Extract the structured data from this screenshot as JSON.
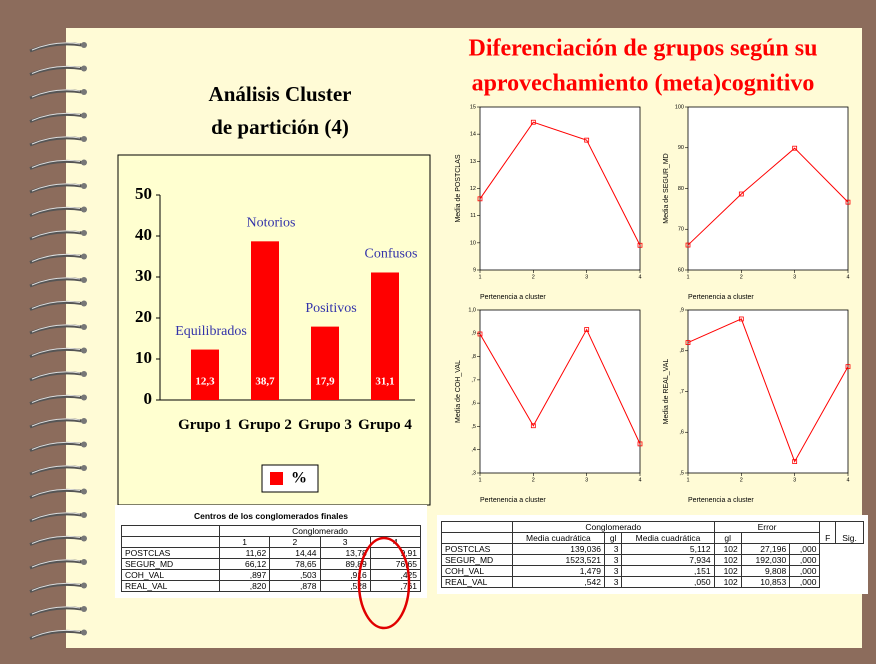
{
  "title": [
    "Diferenciación de grupos según su",
    "aprovechamiento (meta)cognitivo"
  ],
  "chart_data": [
    {
      "type": "bar",
      "title": [
        "Análisis Cluster",
        "de partición (4)"
      ],
      "categories": [
        "Grupo 1",
        "Grupo 2",
        "Grupo 3",
        "Grupo 4"
      ],
      "annotations": [
        "Equilibrados",
        "Notorios",
        "Positivos",
        "Confusos"
      ],
      "series": [
        {
          "name": "%",
          "color": "#ff0000",
          "values": [
            12.3,
            38.7,
            17.9,
            31.1
          ],
          "value_labels": [
            "12,3",
            "38,7",
            "17,9",
            "31,1"
          ]
        }
      ],
      "ylim": [
        0,
        50
      ],
      "yticks": [
        0,
        10,
        20,
        30,
        40,
        50
      ]
    },
    {
      "type": "line",
      "xlabel": "Pertenencia a cluster",
      "ylabel": "Media de POSTCLAS",
      "x": [
        1,
        2,
        3,
        4
      ],
      "xlim": [
        1,
        4
      ],
      "xticks": [
        1,
        2,
        3,
        4
      ],
      "series": [
        {
          "color": "#ff0000",
          "values": [
            11.62,
            14.44,
            13.78,
            9.91
          ]
        }
      ],
      "ylim": [
        9,
        15
      ],
      "yticks": [
        9,
        10,
        11,
        12,
        13,
        14,
        15
      ]
    },
    {
      "type": "line",
      "xlabel": "Pertenencia a cluster",
      "ylabel": "Media de SEGUR_MD",
      "x": [
        1,
        2,
        3,
        4
      ],
      "xlim": [
        1,
        4
      ],
      "xticks": [
        1,
        2,
        3,
        4
      ],
      "series": [
        {
          "color": "#ff0000",
          "values": [
            66.12,
            78.65,
            89.89,
            76.65
          ]
        }
      ],
      "ylim": [
        60,
        100
      ],
      "yticks": [
        60,
        70,
        80,
        90,
        100
      ]
    },
    {
      "type": "line",
      "xlabel": "Pertenencia a cluster",
      "ylabel": "Media de COH_VAL",
      "x": [
        1,
        2,
        3,
        4
      ],
      "xlim": [
        1,
        4
      ],
      "xticks": [
        1,
        2,
        3,
        4
      ],
      "series": [
        {
          "color": "#ff0000",
          "values": [
            0.897,
            0.503,
            0.916,
            0.425
          ]
        }
      ],
      "ylim": [
        0.3,
        1.0
      ],
      "yticks": [
        {
          "value": 0.3,
          "label": ",3"
        },
        {
          "value": 0.4,
          "label": ",4"
        },
        {
          "value": 0.5,
          "label": ",5"
        },
        {
          "value": 0.6,
          "label": ",6"
        },
        {
          "value": 0.7,
          "label": ",7"
        },
        {
          "value": 0.8,
          "label": ",8"
        },
        {
          "value": 0.9,
          "label": ",9"
        },
        {
          "value": 1.0,
          "label": "1,0"
        }
      ]
    },
    {
      "type": "line",
      "xlabel": "Pertenencia a cluster",
      "ylabel": "Media de REAL_VAL",
      "x": [
        1,
        2,
        3,
        4
      ],
      "xlim": [
        1,
        4
      ],
      "xticks": [
        1,
        2,
        3,
        4
      ],
      "series": [
        {
          "color": "#ff0000",
          "values": [
            0.82,
            0.878,
            0.528,
            0.761
          ]
        }
      ],
      "ylim": [
        0.5,
        0.9
      ],
      "yticks": [
        {
          "value": 0.5,
          "label": ",5"
        },
        {
          "value": 0.6,
          "label": ",6"
        },
        {
          "value": 0.7,
          "label": ",7"
        },
        {
          "value": 0.8,
          "label": ",8"
        },
        {
          "value": 0.9,
          "label": ",9"
        }
      ]
    }
  ],
  "tables": [
    {
      "title": "Centros de los conglomerados finales",
      "groups": [
        "Conglomerado"
      ],
      "columns": [
        "1",
        "2",
        "3",
        "4"
      ],
      "rows": [
        [
          "POSTCLAS",
          "11,62",
          "14,44",
          "13,78",
          "9,91"
        ],
        [
          "SEGUR_MD",
          "66,12",
          "78,65",
          "89,89",
          "76,65"
        ],
        [
          "COH_VAL",
          ",897",
          ",503",
          ",916",
          ",425"
        ],
        [
          "REAL_VAL",
          ",820",
          ",878",
          ",528",
          ",761"
        ]
      ]
    },
    {
      "groups": [
        "Conglomerado",
        "Error"
      ],
      "columns": [
        "Media cuadrática",
        "gl",
        "Media cuadrática",
        "gl",
        "F",
        "Sig."
      ],
      "rows": [
        [
          "POSTCLAS",
          "139,036",
          "3",
          "5,112",
          "102",
          "27,196",
          ",000"
        ],
        [
          "SEGUR_MD",
          "1523,521",
          "3",
          "7,934",
          "102",
          "192,030",
          ",000"
        ],
        [
          "COH_VAL",
          "1,479",
          "3",
          ",151",
          "102",
          "9,808",
          ",000"
        ],
        [
          "REAL_VAL",
          ",542",
          "3",
          ",050",
          "102",
          "10,853",
          ",000"
        ]
      ]
    }
  ]
}
